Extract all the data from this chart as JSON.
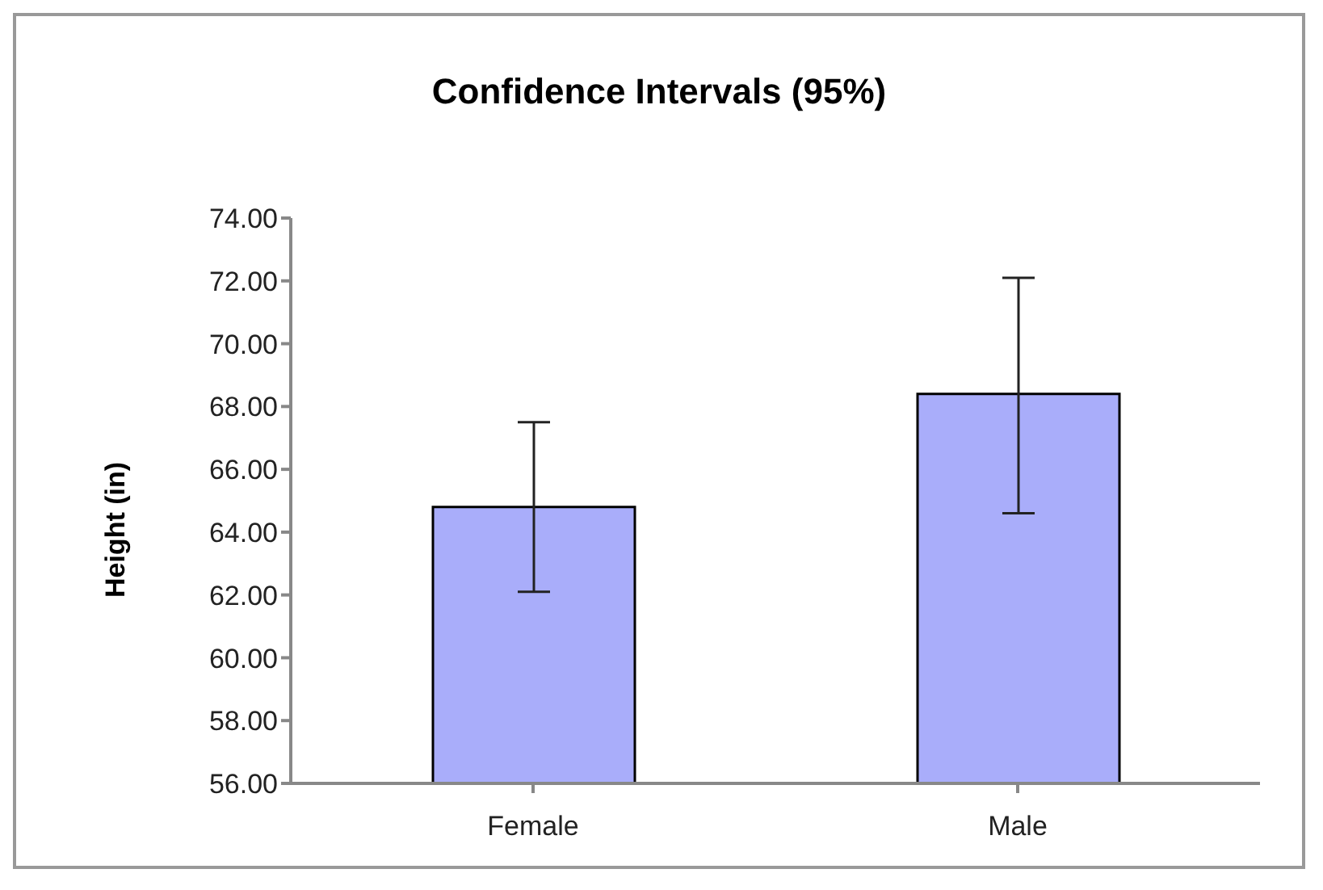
{
  "chart_data": {
    "type": "bar",
    "title": "Confidence Intervals (95%)",
    "ylabel": "Height (in)",
    "categories": [
      "Female",
      "Male"
    ],
    "values": [
      64.8,
      68.4
    ],
    "errors": [
      [
        62.1,
        67.5
      ],
      [
        64.6,
        72.1
      ]
    ],
    "color": "#a9adfa",
    "ylim": [
      56,
      74
    ],
    "yticks": [
      {
        "value": 56,
        "label": "56.00"
      },
      {
        "value": 58,
        "label": "58.00"
      },
      {
        "value": 60,
        "label": "60.00"
      },
      {
        "value": 62,
        "label": "62.00"
      },
      {
        "value": 64,
        "label": "64.00"
      },
      {
        "value": 66,
        "label": "66.00"
      },
      {
        "value": 68,
        "label": "68.00"
      },
      {
        "value": 70,
        "label": "70.00"
      },
      {
        "value": 72,
        "label": "72.00"
      },
      {
        "value": 74,
        "label": "74.00"
      }
    ],
    "grid": false,
    "legend": false
  }
}
